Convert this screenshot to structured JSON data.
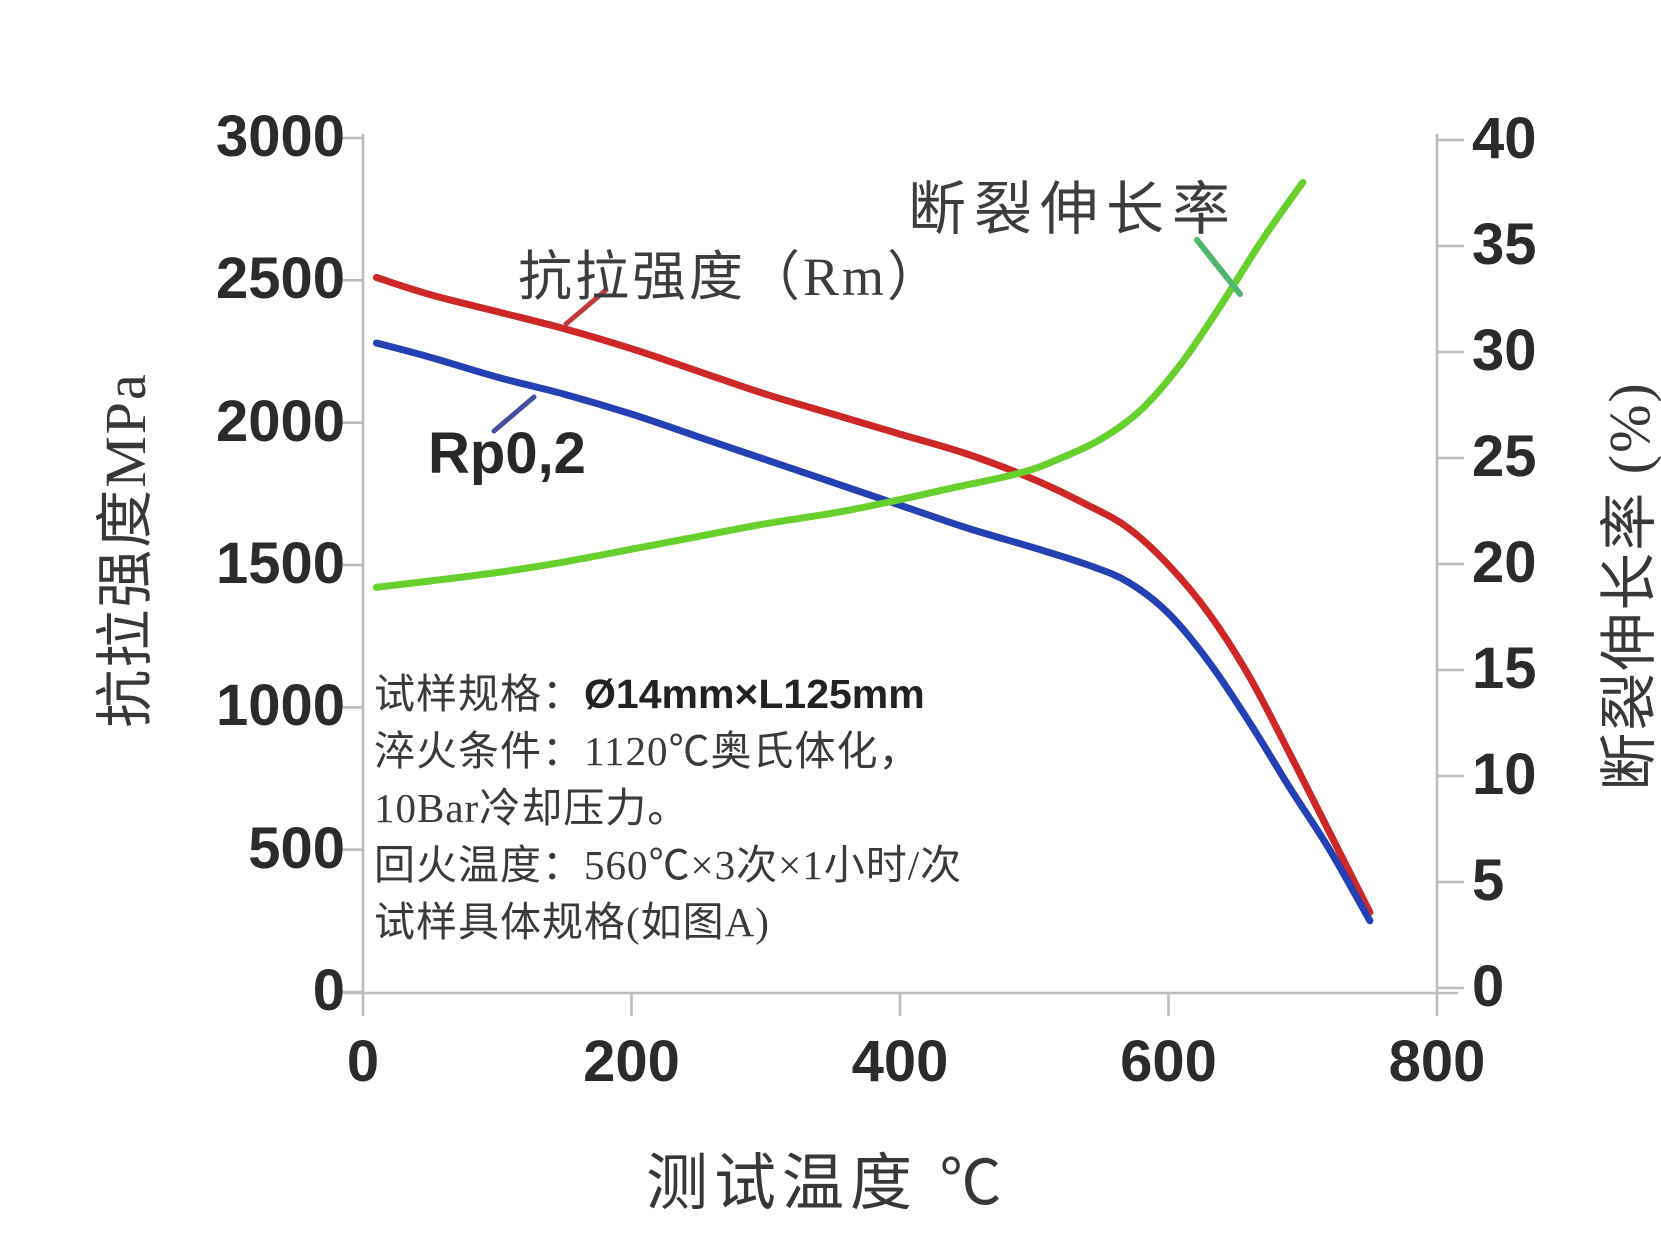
{
  "chart_data": {
    "type": "line",
    "title": "",
    "x_axis": {
      "label": "测试温度 ℃",
      "range": [
        0,
        800
      ],
      "ticks": [
        0,
        200,
        400,
        600,
        800
      ],
      "grid": false
    },
    "y_axis_left": {
      "label": "抗拉强度MPa",
      "range": [
        0,
        3000
      ],
      "ticks": [
        0,
        500,
        1000,
        1500,
        2000,
        2500,
        3000
      ]
    },
    "y_axis_right": {
      "label": "断裂伸长率 (%)",
      "range": [
        0,
        40
      ],
      "ticks": [
        0,
        5,
        10,
        15,
        20,
        25,
        30,
        35,
        40
      ]
    },
    "legend_position": "inline-callout-labels",
    "series": [
      {
        "name": "抗拉强度（Rm）",
        "axis": "left",
        "color": "#cd2728",
        "x": [
          10,
          50,
          100,
          150,
          200,
          250,
          300,
          350,
          400,
          450,
          500,
          540,
          570,
          600,
          630,
          660,
          690,
          720,
          750
        ],
        "values": [
          2510,
          2450,
          2390,
          2330,
          2260,
          2180,
          2100,
          2030,
          1960,
          1890,
          1800,
          1710,
          1630,
          1500,
          1330,
          1110,
          840,
          560,
          280
        ]
      },
      {
        "name": "Rp0,2",
        "axis": "left",
        "color": "#2540b2",
        "x": [
          10,
          50,
          100,
          150,
          200,
          250,
          300,
          350,
          400,
          450,
          500,
          540,
          570,
          600,
          630,
          660,
          690,
          720,
          750
        ],
        "values": [
          2280,
          2230,
          2160,
          2100,
          2030,
          1950,
          1870,
          1790,
          1710,
          1630,
          1560,
          1500,
          1440,
          1330,
          1160,
          950,
          720,
          500,
          250
        ]
      },
      {
        "name": "断裂伸长率",
        "axis": "right",
        "color": "#68d02d",
        "x": [
          10,
          50,
          100,
          150,
          200,
          250,
          300,
          350,
          390,
          440,
          490,
          520,
          550,
          580,
          610,
          640,
          670,
          700
        ],
        "values": [
          18.9,
          19.2,
          19.6,
          20.1,
          20.7,
          21.3,
          21.9,
          22.4,
          22.9,
          23.6,
          24.3,
          25.0,
          25.9,
          27.3,
          29.5,
          32.3,
          35.3,
          38.0
        ]
      }
    ]
  },
  "annotation": {
    "line1_label": "试样规格：",
    "line1_value": "Ø14mm×L125mm",
    "line2": "淬火条件：1120℃奥氏体化，",
    "line3": "10Bar冷却压力。",
    "line4": "回火温度：560℃×3次×1小时/次",
    "line5": "试样具体规格(如图A)"
  }
}
